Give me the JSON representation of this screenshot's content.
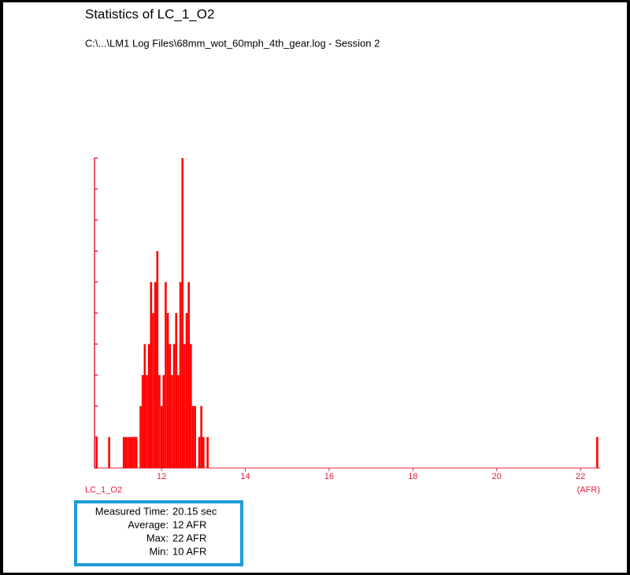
{
  "chart_data": {
    "type": "bar",
    "title": "Statistics of LC_1_O2",
    "subtitle": "C:\\...\\LM1 Log Files\\68mm_wot_60mph_4th_gear.log - Session 2",
    "x_label": "LC_1_O2",
    "x_unit": "(AFR)",
    "x": [
      10.45,
      10.75,
      11.1,
      11.15,
      11.2,
      11.25,
      11.3,
      11.35,
      11.4,
      11.5,
      11.55,
      11.6,
      11.65,
      11.7,
      11.75,
      11.8,
      11.85,
      11.9,
      11.95,
      12.0,
      12.05,
      12.1,
      12.15,
      12.2,
      12.25,
      12.3,
      12.35,
      12.4,
      12.45,
      12.5,
      12.55,
      12.6,
      12.65,
      12.7,
      12.75,
      12.8,
      12.9,
      12.95,
      13.0,
      13.1,
      22.4
    ],
    "values": [
      1,
      1,
      1,
      1,
      1,
      1,
      1,
      1,
      1,
      2,
      3,
      4,
      3,
      4,
      6,
      5,
      6,
      7,
      3,
      2,
      3,
      6,
      5,
      4,
      3,
      4,
      5,
      3,
      6,
      10,
      4,
      5,
      6,
      4,
      2,
      2,
      1,
      2,
      1,
      1,
      1
    ],
    "color": "#ff0000",
    "xlim": [
      10.4,
      22.43
    ],
    "xticks": [
      12,
      14,
      16,
      18,
      20,
      22
    ],
    "ylim": [
      0,
      10
    ],
    "yticks": [
      0,
      1,
      2,
      3,
      4,
      5,
      6,
      7,
      8,
      9,
      10
    ]
  },
  "stats": [
    {
      "label": "Measured Time:",
      "value": "20.15 sec"
    },
    {
      "label": "Average:",
      "value": "12 AFR"
    },
    {
      "label": "Max:",
      "value": "22 AFR"
    },
    {
      "label": "Min:",
      "value": "10 AFR"
    }
  ]
}
